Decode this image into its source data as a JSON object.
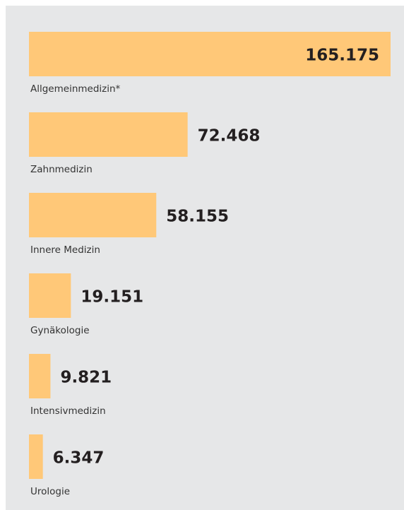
{
  "chart_data": {
    "type": "bar",
    "orientation": "horizontal",
    "categories": [
      "Allgemeinmedizin*",
      "Zahnmedizin",
      "Innere Medizin",
      "Gynäkologie",
      "Intensivmedizin",
      "Urologie"
    ],
    "values": [
      165175,
      72468,
      58155,
      19151,
      9821,
      6347
    ],
    "value_labels": [
      "165.175",
      "72.468",
      "58.155",
      "19.151",
      "9.821",
      "6.347"
    ],
    "color": "#ffc878"
  }
}
